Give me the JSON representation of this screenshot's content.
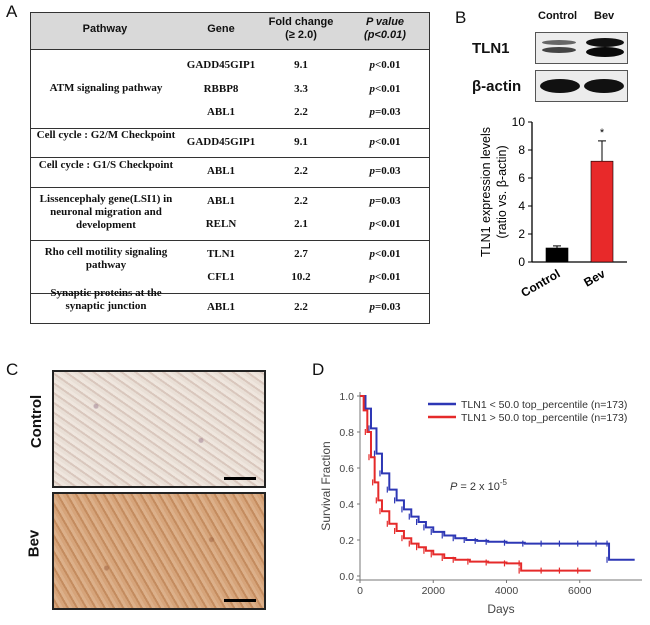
{
  "panels": {
    "a": "A",
    "b": "B",
    "c": "C",
    "d": "D"
  },
  "table": {
    "headers": {
      "pathway": "Pathway",
      "gene": "Gene",
      "fold_line1": "Fold change",
      "fold_line2": "(≥ 2.0)",
      "pval_line1": "P value",
      "pval_line2": "(p<0.01)"
    },
    "groups": [
      {
        "pathway": "ATM signaling pathway",
        "rows": [
          {
            "gene": "GADD45GIP1",
            "fold": "9.1",
            "p": "p<0.01"
          },
          {
            "gene": "RBBP8",
            "fold": "3.3",
            "p": "p<0.01"
          },
          {
            "gene": "ABL1",
            "fold": "2.2",
            "p": "p=0.03"
          }
        ]
      },
      {
        "pathway": "Cell cycle : G2/M Checkpoint",
        "rows": [
          {
            "gene": "GADD45GIP1",
            "fold": "9.1",
            "p": "p<0.01"
          }
        ]
      },
      {
        "pathway": "Cell cycle : G1/S Checkpoint",
        "rows": [
          {
            "gene": "ABL1",
            "fold": "2.2",
            "p": "p=0.03"
          }
        ]
      },
      {
        "pathway": "Lissencephaly gene(LSI1) in neuronal migration and development",
        "rows": [
          {
            "gene": "ABL1",
            "fold": "2.2",
            "p": "p=0.03"
          },
          {
            "gene": "RELN",
            "fold": "2.1",
            "p": "p<0.01"
          }
        ]
      },
      {
        "pathway": "Rho cell motility signaling pathway",
        "rows": [
          {
            "gene": "TLN1",
            "fold": "2.7",
            "p": "p<0.01"
          },
          {
            "gene": "CFL1",
            "fold": "10.2",
            "p": "p<0.01"
          }
        ]
      },
      {
        "pathway": "Synaptic proteins at the synaptic junction",
        "rows": [
          {
            "gene": "ABL1",
            "fold": "2.2",
            "p": "p=0.03"
          }
        ]
      }
    ]
  },
  "blot": {
    "lane_control": "Control",
    "lane_bev": "Bev",
    "row1": "TLN1",
    "row2": "β-actin"
  },
  "micrographs": {
    "top_label": "Control",
    "bottom_label": "Bev"
  },
  "chart_data": [
    {
      "type": "bar",
      "categories": [
        "Control",
        "Bev"
      ],
      "values": [
        1.0,
        7.2
      ],
      "errors": [
        0.15,
        1.45
      ],
      "colors": [
        "#000000",
        "#e8292a"
      ],
      "ylabel": "TLN1 expression levels (ratio vs. β-actin)",
      "ylabel_line1": "TLN1 expression levels",
      "ylabel_line2": "(ratio vs. β-actin)",
      "ylim": [
        0,
        10
      ],
      "yticks": [
        "0",
        "2",
        "4",
        "6",
        "8",
        "10"
      ],
      "significance": "*"
    },
    {
      "type": "line",
      "title": "",
      "xlabel": "Days",
      "ylabel": "Survival Fraction",
      "xlim": [
        0,
        7700
      ],
      "ylim": [
        0,
        1.0
      ],
      "xticks": [
        "0",
        "2000",
        "4000",
        "6000"
      ],
      "yticks": [
        "0.0",
        "0.2",
        "0.4",
        "0.6",
        "0.8",
        "1.0"
      ],
      "annotation": "P = 2 x 10",
      "annotation_exp": "-5",
      "series": [
        {
          "name": "TLN1 < 50.0 top_percentile (n=173)",
          "color": "#2d37b5",
          "x": [
            0,
            150,
            300,
            450,
            600,
            800,
            1000,
            1200,
            1400,
            1600,
            1800,
            2000,
            2300,
            2600,
            2900,
            3200,
            3500,
            4000,
            4500,
            5000,
            5500,
            6000,
            6500,
            6800,
            6800,
            7500
          ],
          "y": [
            1.0,
            0.93,
            0.82,
            0.68,
            0.57,
            0.48,
            0.42,
            0.37,
            0.33,
            0.3,
            0.27,
            0.245,
            0.225,
            0.21,
            0.2,
            0.195,
            0.19,
            0.185,
            0.18,
            0.18,
            0.18,
            0.18,
            0.18,
            0.18,
            0.09,
            0.09
          ]
        },
        {
          "name": "TLN1 > 50.0 top_percentile (n=173)",
          "color": "#e52a2a",
          "x": [
            0,
            100,
            200,
            300,
            400,
            500,
            600,
            800,
            1000,
            1200,
            1400,
            1600,
            1800,
            2000,
            2300,
            2600,
            3000,
            3500,
            4000,
            4400,
            4400,
            5000,
            5500,
            6000,
            6300
          ],
          "y": [
            1.0,
            0.92,
            0.8,
            0.66,
            0.52,
            0.42,
            0.36,
            0.29,
            0.25,
            0.21,
            0.18,
            0.16,
            0.14,
            0.12,
            0.1,
            0.09,
            0.08,
            0.075,
            0.07,
            0.07,
            0.03,
            0.03,
            0.03,
            0.03,
            0.03
          ]
        }
      ]
    }
  ]
}
